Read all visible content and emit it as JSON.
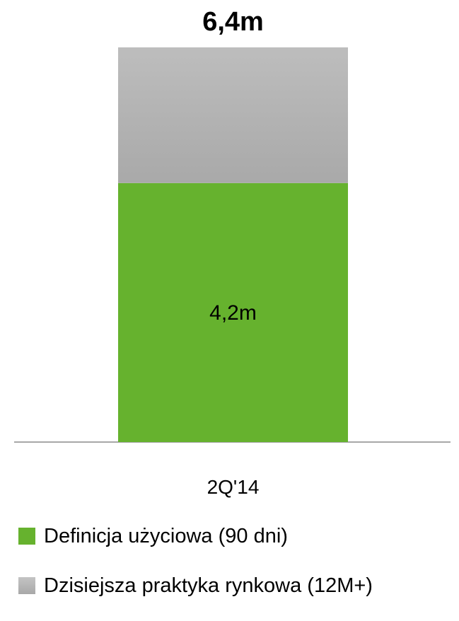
{
  "chart_data": {
    "type": "bar",
    "stacked": true,
    "categories": [
      "2Q'14"
    ],
    "series": [
      {
        "name": "Definicja użyciowa (90 dni)",
        "values": [
          4.2
        ],
        "value_labels": [
          "4,2m"
        ],
        "color": "#66b22e"
      },
      {
        "name": "Dzisiejsza praktyka rynkowa (12M+)",
        "values": [
          2.2
        ],
        "value_labels": [
          ""
        ],
        "color": "#b8b8b8"
      }
    ],
    "totals": [
      6.4
    ],
    "total_labels": [
      "6,4m"
    ],
    "ylim": [
      0,
      6.4
    ],
    "grid": false,
    "legend_position": "bottom-left",
    "title": "",
    "xlabel": "",
    "ylabel": ""
  }
}
